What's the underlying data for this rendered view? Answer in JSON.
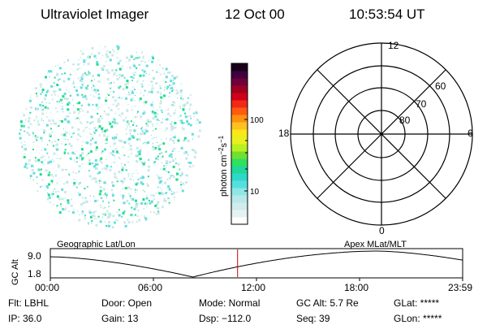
{
  "header": {
    "title": "Ultraviolet Imager",
    "date": "12 Oct 00",
    "time": "10:53:54 UT"
  },
  "colorbar": {
    "label": "photon cm",
    "label_sup1": "−2",
    "label_s": "s",
    "label_sup2": "−1",
    "tick_100": "100",
    "tick_10": "10",
    "colors": [
      "#ffffff",
      "#e6f2f2",
      "#d0ecec",
      "#b8e8e8",
      "#8ee6e6",
      "#55e0e0",
      "#30d8c8",
      "#20d89a",
      "#30e060",
      "#70e030",
      "#b8f020",
      "#e8f020",
      "#f8e818",
      "#ffc020",
      "#ff9010",
      "#ff5a10",
      "#f02818",
      "#d00018",
      "#a00020",
      "#70003a",
      "#400040",
      "#18001a"
    ]
  },
  "polar": {
    "lat_labels": [
      "60",
      "70",
      "80"
    ],
    "mlt_labels": {
      "top": "12",
      "left": "18",
      "right": "6",
      "bottom": "0"
    }
  },
  "timeline": {
    "y_axis_label": "GC Alt",
    "y_ticks": [
      "9.0",
      "1.8"
    ],
    "left_caption": "Geographic Lat/Lon",
    "right_caption": "Apex MLat/MLT",
    "x_ticks": [
      "00:00",
      "06:00",
      "12:00",
      "18:00",
      "23:59"
    ],
    "current_time_hours": 10.9
  },
  "status": {
    "col1": [
      "Flt: LBHL",
      "IP: 36.0"
    ],
    "col2": [
      "Door: Open",
      "Gain: 13"
    ],
    "col3": [
      "Mode: Normal",
      "Dsp: −112.0"
    ],
    "col4": [
      "GC Alt: 5.7 Re",
      "Seq: 39"
    ],
    "col5": [
      "GLat: *****",
      "GLon: *****"
    ]
  },
  "colors": {
    "speckle_light": "#cce8e8",
    "speckle_mid": "#66dddd",
    "speckle_green": "#22dd88",
    "marker": "#cc0000"
  }
}
